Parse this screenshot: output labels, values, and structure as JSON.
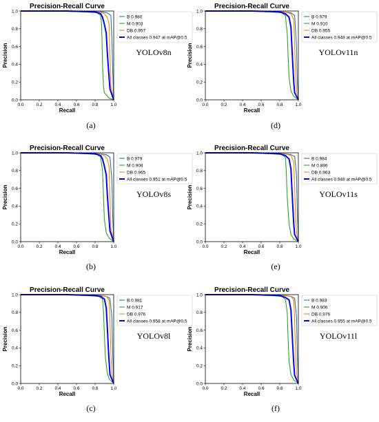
{
  "colors": {
    "B": "#1f77b4",
    "M": "#2ca02c",
    "DB": "#ff7f0e",
    "all": "#0000ff"
  },
  "chart_data": [
    {
      "type": "line",
      "title": "Precision-Recall Curve",
      "xlabel": "Recall",
      "ylabel": "Precision",
      "xlim": [
        0,
        1
      ],
      "ylim": [
        0,
        1
      ],
      "ticks": [
        "0.0",
        "0.2",
        "0.4",
        "0.6",
        "0.8",
        "1.0"
      ],
      "model": "YOLOv8n",
      "caption": "(a)",
      "legend_position": "top-right",
      "series": [
        {
          "name": "B 0.980",
          "x": [
            0,
            0.5,
            0.8,
            0.88,
            0.93,
            0.97,
            0.98,
            0.99,
            1.0
          ],
          "y": [
            1.0,
            1.0,
            0.995,
            0.99,
            0.98,
            0.95,
            0.7,
            0.3,
            0.02
          ]
        },
        {
          "name": "M 0.903",
          "x": [
            0,
            0.4,
            0.7,
            0.82,
            0.86,
            0.87,
            0.875,
            0.88,
            0.89,
            0.9,
            0.95,
            1.0
          ],
          "y": [
            1.0,
            1.0,
            0.99,
            0.98,
            0.95,
            0.85,
            0.65,
            0.4,
            0.15,
            0.08,
            0.02,
            0.0
          ]
        },
        {
          "name": "DB 0.957",
          "x": [
            0,
            0.6,
            0.85,
            0.9,
            0.93,
            0.95,
            0.96,
            0.97,
            1.0
          ],
          "y": [
            1.0,
            1.0,
            0.99,
            0.97,
            0.93,
            0.85,
            0.5,
            0.15,
            0.01
          ]
        },
        {
          "name": "All classes 0.947 at mAP@0.5",
          "x": [
            0,
            0.5,
            0.8,
            0.86,
            0.88,
            0.9,
            0.92,
            0.93,
            0.94,
            0.95,
            0.96,
            1.0
          ],
          "y": [
            1.0,
            1.0,
            0.99,
            0.97,
            0.93,
            0.85,
            0.75,
            0.55,
            0.4,
            0.25,
            0.12,
            0.0
          ]
        }
      ]
    },
    {
      "type": "line",
      "title": "Precision-Recall Curve",
      "xlabel": "Recall",
      "ylabel": "Precision",
      "xlim": [
        0,
        1
      ],
      "ylim": [
        0,
        1
      ],
      "ticks": [
        "0.0",
        "0.2",
        "0.4",
        "0.6",
        "0.8",
        "1.0"
      ],
      "model": "YOLOv11n",
      "caption": "(d)",
      "legend_position": "top-right",
      "series": [
        {
          "name": "B 0.979",
          "x": [
            0,
            0.5,
            0.85,
            0.92,
            0.96,
            0.98,
            0.99,
            1.0
          ],
          "y": [
            1.0,
            1.0,
            0.99,
            0.98,
            0.95,
            0.6,
            0.2,
            0.02
          ]
        },
        {
          "name": "M 0.910",
          "x": [
            0,
            0.4,
            0.7,
            0.82,
            0.86,
            0.88,
            0.89,
            0.9,
            0.92,
            0.95,
            1.0
          ],
          "y": [
            1.0,
            1.0,
            0.99,
            0.98,
            0.95,
            0.75,
            0.5,
            0.25,
            0.1,
            0.04,
            0.0
          ]
        },
        {
          "name": "DB 0.955",
          "x": [
            0,
            0.6,
            0.85,
            0.92,
            0.95,
            0.96,
            0.97,
            0.98,
            1.0
          ],
          "y": [
            1.0,
            1.0,
            0.99,
            0.97,
            0.9,
            0.6,
            0.3,
            0.1,
            0.01
          ]
        },
        {
          "name": "All classes 0.948 at mAP@0.5",
          "x": [
            0,
            0.5,
            0.8,
            0.86,
            0.9,
            0.92,
            0.93,
            0.94,
            0.95,
            0.96,
            1.0
          ],
          "y": [
            1.0,
            1.0,
            0.99,
            0.97,
            0.93,
            0.82,
            0.6,
            0.4,
            0.2,
            0.08,
            0.0
          ]
        }
      ]
    },
    {
      "type": "line",
      "title": "Precision-Recall Curve",
      "xlabel": "Recall",
      "ylabel": "Precision",
      "xlim": [
        0,
        1
      ],
      "ylim": [
        0,
        1
      ],
      "ticks": [
        "0.0",
        "0.2",
        "0.4",
        "0.6",
        "0.8",
        "1.0"
      ],
      "model": "YOLOv8s",
      "caption": "(b)",
      "legend_position": "top-right",
      "series": [
        {
          "name": "B 0.979",
          "x": [
            0,
            0.5,
            0.85,
            0.92,
            0.96,
            0.98,
            0.99,
            1.0
          ],
          "y": [
            1.0,
            1.0,
            0.99,
            0.98,
            0.95,
            0.7,
            0.25,
            0.02
          ]
        },
        {
          "name": "M 0.908",
          "x": [
            0,
            0.4,
            0.7,
            0.82,
            0.86,
            0.88,
            0.89,
            0.9,
            0.92,
            0.95,
            1.0
          ],
          "y": [
            1.0,
            1.0,
            0.99,
            0.98,
            0.95,
            0.8,
            0.5,
            0.25,
            0.1,
            0.04,
            0.0
          ]
        },
        {
          "name": "DB 0.965",
          "x": [
            0,
            0.6,
            0.85,
            0.9,
            0.93,
            0.95,
            0.96,
            0.97,
            1.0
          ],
          "y": [
            1.0,
            1.0,
            0.99,
            0.97,
            0.93,
            0.85,
            0.5,
            0.15,
            0.01
          ]
        },
        {
          "name": "All classes 0.951 at mAP@0.5",
          "x": [
            0,
            0.5,
            0.8,
            0.86,
            0.88,
            0.9,
            0.92,
            0.93,
            0.94,
            0.95,
            0.96,
            1.0
          ],
          "y": [
            1.0,
            1.0,
            0.99,
            0.97,
            0.93,
            0.85,
            0.75,
            0.55,
            0.4,
            0.25,
            0.12,
            0.0
          ]
        }
      ]
    },
    {
      "type": "line",
      "title": "Precision-Recall Curve",
      "xlabel": "Recall",
      "ylabel": "Precision",
      "xlim": [
        0,
        1
      ],
      "ylim": [
        0,
        1
      ],
      "ticks": [
        "0.0",
        "0.2",
        "0.4",
        "0.6",
        "0.8",
        "1.0"
      ],
      "model": "YOLOv11s",
      "caption": "(e)",
      "legend_position": "top-right",
      "series": [
        {
          "name": "B 0.984",
          "x": [
            0,
            0.5,
            0.85,
            0.92,
            0.96,
            0.98,
            0.99,
            1.0
          ],
          "y": [
            1.0,
            1.0,
            0.99,
            0.98,
            0.96,
            0.75,
            0.3,
            0.02
          ]
        },
        {
          "name": "M 0.896",
          "x": [
            0,
            0.4,
            0.7,
            0.82,
            0.86,
            0.87,
            0.88,
            0.9,
            0.92,
            0.95,
            1.0
          ],
          "y": [
            1.0,
            1.0,
            0.99,
            0.98,
            0.95,
            0.8,
            0.5,
            0.2,
            0.08,
            0.03,
            0.0
          ]
        },
        {
          "name": "DB 0.963",
          "x": [
            0,
            0.6,
            0.85,
            0.92,
            0.95,
            0.96,
            0.97,
            0.98,
            1.0
          ],
          "y": [
            1.0,
            1.0,
            0.99,
            0.97,
            0.9,
            0.6,
            0.3,
            0.1,
            0.01
          ]
        },
        {
          "name": "All classes 0.948 at mAP@0.5",
          "x": [
            0,
            0.5,
            0.8,
            0.86,
            0.9,
            0.92,
            0.93,
            0.94,
            0.95,
            0.96,
            1.0
          ],
          "y": [
            1.0,
            1.0,
            0.99,
            0.97,
            0.93,
            0.82,
            0.6,
            0.4,
            0.2,
            0.08,
            0.0
          ]
        }
      ]
    },
    {
      "type": "line",
      "title": "Precision-Recall Curve",
      "xlabel": "Recall",
      "ylabel": "Precision",
      "xlim": [
        0,
        1
      ],
      "ylim": [
        0,
        1
      ],
      "ticks": [
        "0.0",
        "0.2",
        "0.4",
        "0.6",
        "0.8",
        "1.0"
      ],
      "model": "YOLOv8l",
      "caption": "(c)",
      "legend_position": "top-right",
      "series": [
        {
          "name": "B 0.981",
          "x": [
            0,
            0.5,
            0.85,
            0.92,
            0.96,
            0.98,
            0.99,
            1.0
          ],
          "y": [
            1.0,
            1.0,
            0.99,
            0.98,
            0.96,
            0.75,
            0.3,
            0.02
          ]
        },
        {
          "name": "M 0.917",
          "x": [
            0,
            0.4,
            0.7,
            0.84,
            0.88,
            0.89,
            0.9,
            0.91,
            0.93,
            0.95,
            1.0
          ],
          "y": [
            1.0,
            1.0,
            0.99,
            0.98,
            0.95,
            0.8,
            0.55,
            0.3,
            0.12,
            0.05,
            0.0
          ]
        },
        {
          "name": "DB 0.976",
          "x": [
            0,
            0.6,
            0.87,
            0.92,
            0.95,
            0.96,
            0.97,
            0.98,
            1.0
          ],
          "y": [
            1.0,
            1.0,
            0.99,
            0.98,
            0.94,
            0.7,
            0.35,
            0.12,
            0.01
          ]
        },
        {
          "name": "All classes 0.958 at mAP@0.5",
          "x": [
            0,
            0.5,
            0.8,
            0.86,
            0.9,
            0.92,
            0.93,
            0.94,
            0.95,
            0.96,
            1.0
          ],
          "y": [
            1.0,
            1.0,
            0.99,
            0.98,
            0.95,
            0.85,
            0.65,
            0.45,
            0.25,
            0.1,
            0.0
          ]
        }
      ]
    },
    {
      "type": "line",
      "title": "Precision-Recall Curve",
      "xlabel": "Recall",
      "ylabel": "Precision",
      "xlim": [
        0,
        1
      ],
      "ylim": [
        0,
        1
      ],
      "ticks": [
        "0.0",
        "0.2",
        "0.4",
        "0.6",
        "0.8",
        "1.0"
      ],
      "model": "YOLOv11l",
      "caption": "(f)",
      "legend_position": "top-right",
      "series": [
        {
          "name": "B 0.983",
          "x": [
            0,
            0.5,
            0.85,
            0.92,
            0.96,
            0.98,
            0.99,
            1.0
          ],
          "y": [
            1.0,
            1.0,
            0.99,
            0.98,
            0.96,
            0.75,
            0.3,
            0.02
          ]
        },
        {
          "name": "M 0.906",
          "x": [
            0,
            0.4,
            0.7,
            0.82,
            0.86,
            0.88,
            0.89,
            0.9,
            0.92,
            0.95,
            1.0
          ],
          "y": [
            1.0,
            1.0,
            0.99,
            0.98,
            0.95,
            0.8,
            0.5,
            0.25,
            0.1,
            0.04,
            0.0
          ]
        },
        {
          "name": "DB 0.976",
          "x": [
            0,
            0.6,
            0.87,
            0.92,
            0.95,
            0.96,
            0.97,
            0.98,
            1.0
          ],
          "y": [
            1.0,
            1.0,
            0.99,
            0.98,
            0.94,
            0.7,
            0.35,
            0.12,
            0.01
          ]
        },
        {
          "name": "All classes 0.955 at mAP@0.5",
          "x": [
            0,
            0.5,
            0.8,
            0.86,
            0.9,
            0.92,
            0.93,
            0.94,
            0.95,
            0.96,
            1.0
          ],
          "y": [
            1.0,
            1.0,
            0.99,
            0.97,
            0.94,
            0.83,
            0.62,
            0.42,
            0.22,
            0.09,
            0.0
          ]
        }
      ]
    }
  ]
}
